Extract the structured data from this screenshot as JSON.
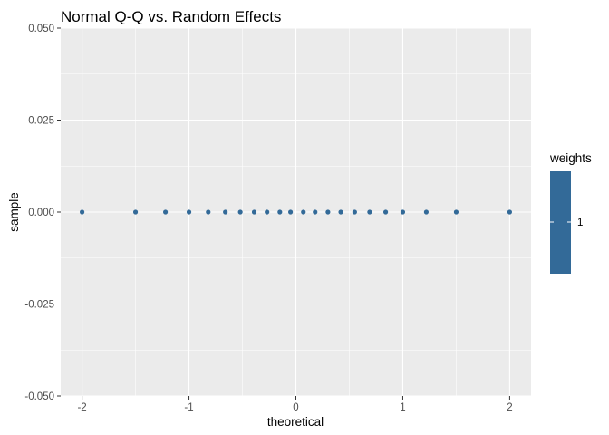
{
  "chart_data": {
    "type": "scatter",
    "title": "Normal Q-Q vs. Random Effects",
    "xlabel": "theoretical",
    "ylabel": "sample",
    "xlim": [
      -2.2,
      2.2
    ],
    "ylim": [
      -0.05,
      0.05
    ],
    "x_ticks": [
      -2,
      -1,
      0,
      1,
      2
    ],
    "x_tick_labels": [
      "-2",
      "-1",
      "0",
      "1",
      "2"
    ],
    "y_ticks": [
      -0.05,
      -0.025,
      0,
      0.025,
      0.05
    ],
    "y_tick_labels": [
      "-0.050",
      "-0.025",
      "0.000",
      "0.025",
      "0.050"
    ],
    "grid": true,
    "panel_background": "#ebebeb",
    "grid_color": "#ffffff",
    "point_color": "#336a98",
    "series": [
      {
        "x": [
          -2.0,
          -1.5,
          -1.22,
          -1.0,
          -0.82,
          -0.66,
          -0.52,
          -0.39,
          -0.27,
          -0.15,
          -0.05,
          0.07,
          0.18,
          0.3,
          0.42,
          0.55,
          0.69,
          0.84,
          1.0,
          1.22,
          1.5,
          2.0
        ],
        "y": [
          0,
          0,
          0,
          0,
          0,
          0,
          0,
          0,
          0,
          0,
          0,
          0,
          0,
          0,
          0,
          0,
          0,
          0,
          0,
          0,
          0,
          0
        ]
      }
    ],
    "legend": {
      "title": "weights",
      "labels": [
        "1"
      ],
      "color": "#336a98",
      "placement": "right"
    }
  }
}
